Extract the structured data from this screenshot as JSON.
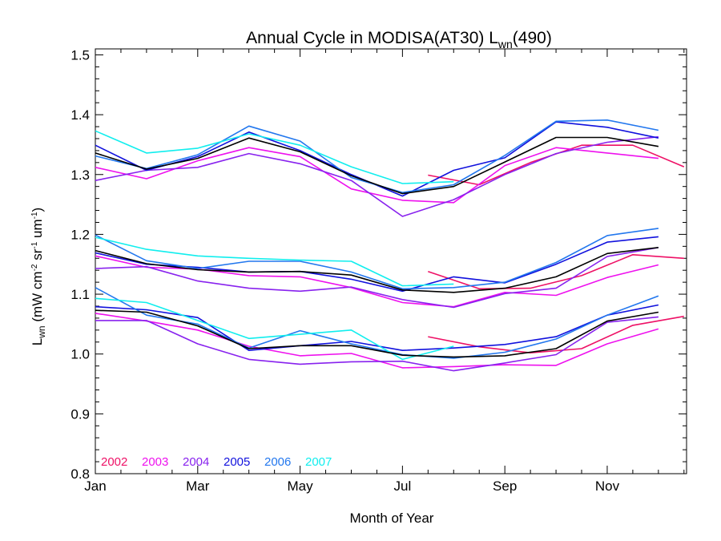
{
  "chart_data": {
    "type": "line",
    "title": {
      "main": "Annual Cycle in MODISA(AT30) L",
      "sub": "wn",
      "tail": "(490)"
    },
    "xlabel": "Month of Year",
    "ylabel": {
      "L": "L",
      "wn": "wn",
      "units_a": " (mW cm",
      "exp1": "-2",
      "units_b": " sr",
      "exp2": "-1",
      "units_c": " um",
      "exp3": "-1",
      "units_d": ")"
    },
    "xlim": [
      1,
      12.55
    ],
    "ylim": [
      0.8,
      1.51
    ],
    "x_ticks": [
      {
        "x": 1,
        "label": "Jan"
      },
      {
        "x": 3,
        "label": "Mar"
      },
      {
        "x": 5,
        "label": "May"
      },
      {
        "x": 7,
        "label": "Jul"
      },
      {
        "x": 9,
        "label": "Sep"
      },
      {
        "x": 11,
        "label": "Nov"
      }
    ],
    "y_ticks": [
      {
        "y": 0.8,
        "label": "0.8"
      },
      {
        "y": 0.9,
        "label": "0.9"
      },
      {
        "y": 1.0,
        "label": "1.0"
      },
      {
        "y": 1.1,
        "label": "1.1"
      },
      {
        "y": 1.2,
        "label": "1.2"
      },
      {
        "y": 1.3,
        "label": "1.3"
      },
      {
        "y": 1.4,
        "label": "1.4"
      },
      {
        "y": 1.5,
        "label": "1.5"
      }
    ],
    "x_minor_step": 0.5,
    "y_minor_step": 0.02,
    "grid": false,
    "legend_position": "bottom-left",
    "series": [
      {
        "name": "2002",
        "color": "#ee1166",
        "groups": [
          {
            "x": [
              7.5,
              8.5,
              9.5,
              10.5,
              11.5,
              12.5
            ],
            "y": [
              1.029,
              1.012,
              1.002,
              1.009,
              1.048,
              1.063
            ]
          },
          {
            "x": [
              7.5,
              8.5,
              9.5,
              10.5,
              11.5,
              12.5
            ],
            "y": [
              1.138,
              1.109,
              1.11,
              1.131,
              1.166,
              1.16
            ]
          },
          {
            "x": [
              7.5,
              8.5,
              9.5,
              10.5,
              11.5,
              12.5
            ],
            "y": [
              1.299,
              1.283,
              1.32,
              1.349,
              1.349,
              1.313
            ]
          }
        ]
      },
      {
        "name": "2003",
        "color": "#ee11ee",
        "groups": [
          {
            "x": [
              1,
              2,
              3,
              4,
              5,
              6,
              7,
              8,
              9,
              10,
              11,
              12
            ],
            "y": [
              1.068,
              1.055,
              1.04,
              1.013,
              0.997,
              1.001,
              0.977,
              0.979,
              0.982,
              0.981,
              1.017,
              1.042
            ]
          },
          {
            "x": [
              1,
              2,
              3,
              4,
              5,
              6,
              7,
              8,
              9,
              10,
              11,
              12
            ],
            "y": [
              1.164,
              1.145,
              1.142,
              1.131,
              1.129,
              1.111,
              1.086,
              1.079,
              1.103,
              1.098,
              1.128,
              1.149
            ]
          },
          {
            "x": [
              1,
              2,
              3,
              4,
              5,
              6,
              7,
              8,
              9,
              10,
              11,
              12
            ],
            "y": [
              1.312,
              1.293,
              1.323,
              1.345,
              1.33,
              1.276,
              1.257,
              1.253,
              1.315,
              1.345,
              1.336,
              1.327
            ]
          }
        ]
      },
      {
        "name": "2004",
        "color": "#8822ee",
        "groups": [
          {
            "x": [
              1,
              2,
              3,
              4,
              5,
              6,
              7,
              8,
              9,
              10,
              11,
              12
            ],
            "y": [
              1.056,
              1.056,
              1.017,
              0.991,
              0.983,
              0.987,
              0.988,
              0.972,
              0.985,
              0.999,
              1.053,
              1.062
            ]
          },
          {
            "x": [
              1,
              2,
              3,
              4,
              5,
              6,
              7,
              8,
              9,
              10,
              11,
              12
            ],
            "y": [
              1.143,
              1.146,
              1.122,
              1.11,
              1.105,
              1.112,
              1.091,
              1.078,
              1.101,
              1.11,
              1.163,
              1.178
            ]
          },
          {
            "x": [
              1,
              2,
              3,
              4,
              5,
              6,
              7,
              8,
              9,
              10,
              11,
              12
            ],
            "y": [
              1.29,
              1.307,
              1.312,
              1.335,
              1.318,
              1.29,
              1.23,
              1.258,
              1.3,
              1.335,
              1.354,
              1.363
            ]
          }
        ]
      },
      {
        "name": "2005",
        "color": "#1111dd",
        "groups": [
          {
            "x": [
              1,
              2,
              3,
              4,
              5,
              6,
              7,
              8,
              9,
              10,
              11,
              12
            ],
            "y": [
              1.079,
              1.074,
              1.061,
              1.006,
              1.014,
              1.021,
              1.006,
              1.01,
              1.016,
              1.029,
              1.065,
              1.082
            ]
          },
          {
            "x": [
              1,
              2,
              3,
              4,
              5,
              6,
              7,
              8,
              9,
              10,
              11,
              12
            ],
            "y": [
              1.169,
              1.15,
              1.145,
              1.137,
              1.138,
              1.125,
              1.105,
              1.129,
              1.119,
              1.15,
              1.187,
              1.196
            ]
          },
          {
            "x": [
              1,
              2,
              3,
              4,
              5,
              6,
              7,
              8,
              9,
              10,
              11,
              12
            ],
            "y": [
              1.349,
              1.307,
              1.33,
              1.371,
              1.34,
              1.3,
              1.264,
              1.307,
              1.328,
              1.388,
              1.379,
              1.361
            ]
          }
        ]
      },
      {
        "name": "2006",
        "color": "#2277ee",
        "groups": [
          {
            "x": [
              1,
              2,
              3,
              4,
              5,
              6,
              7,
              8,
              9,
              10,
              11,
              12
            ],
            "y": [
              1.111,
              1.065,
              1.05,
              1.01,
              1.039,
              1.017,
              0.999,
              0.993,
              1.003,
              1.025,
              1.065,
              1.097
            ]
          },
          {
            "x": [
              1,
              2,
              3,
              4,
              5,
              6,
              7,
              8,
              9,
              10,
              11,
              12
            ],
            "y": [
              1.199,
              1.156,
              1.143,
              1.155,
              1.155,
              1.137,
              1.109,
              1.111,
              1.12,
              1.153,
              1.198,
              1.21
            ]
          },
          {
            "x": [
              1,
              2,
              3,
              4,
              5,
              6,
              7,
              8,
              9,
              10,
              11,
              12
            ],
            "y": [
              1.331,
              1.31,
              1.333,
              1.381,
              1.356,
              1.295,
              1.27,
              1.283,
              1.332,
              1.389,
              1.391,
              1.374
            ]
          }
        ]
      },
      {
        "name": "2007",
        "color": "#11eeee",
        "groups": [
          {
            "x": [
              1,
              2,
              3,
              4,
              5,
              6,
              7,
              8
            ],
            "y": [
              1.093,
              1.086,
              1.056,
              1.026,
              1.033,
              1.04,
              0.991,
              1.013
            ]
          },
          {
            "x": [
              1,
              2,
              3,
              4,
              5,
              6,
              7,
              8
            ],
            "y": [
              1.195,
              1.175,
              1.164,
              1.16,
              1.157,
              1.155,
              1.114,
              1.117
            ]
          },
          {
            "x": [
              1,
              2,
              3,
              4,
              5,
              6,
              7,
              8
            ],
            "y": [
              1.373,
              1.336,
              1.344,
              1.368,
              1.349,
              1.313,
              1.285,
              1.288
            ]
          }
        ]
      },
      {
        "name": "",
        "color": "#000000",
        "legend": false,
        "groups": [
          {
            "x": [
              1,
              2,
              3,
              4,
              5,
              6,
              7,
              8,
              9,
              10,
              11,
              12
            ],
            "y": [
              1.073,
              1.07,
              1.047,
              1.009,
              1.014,
              1.014,
              0.998,
              0.995,
              0.997,
              1.009,
              1.055,
              1.07
            ]
          },
          {
            "x": [
              1,
              2,
              3,
              4,
              5,
              6,
              7,
              8,
              9,
              10,
              11,
              12
            ],
            "y": [
              1.173,
              1.151,
              1.141,
              1.137,
              1.138,
              1.132,
              1.107,
              1.103,
              1.11,
              1.129,
              1.168,
              1.178
            ]
          },
          {
            "x": [
              1,
              2,
              3,
              4,
              5,
              6,
              7,
              8,
              9,
              10,
              11,
              12
            ],
            "y": [
              1.336,
              1.309,
              1.327,
              1.361,
              1.338,
              1.298,
              1.268,
              1.28,
              1.321,
              1.362,
              1.362,
              1.347
            ]
          }
        ]
      }
    ]
  }
}
